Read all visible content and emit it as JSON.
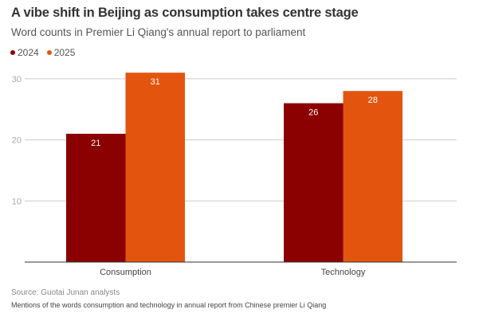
{
  "title": "A vibe shift in Beijing as consumption takes centre stage",
  "subtitle": "Word counts in Premier Li Qiang's annual report to parliament",
  "source": "Source: Guotai Junan analysts",
  "note": "Mentions of the words consumption and technology in annual report from Chinese premier Li Qiang",
  "chart_data": {
    "type": "bar",
    "title": "A vibe shift in Beijing as consumption takes centre stage",
    "xlabel": "",
    "ylabel": "",
    "categories": [
      "Consumption",
      "Technology"
    ],
    "series": [
      {
        "name": "2024",
        "values": [
          21,
          26
        ],
        "color": "#8b0000"
      },
      {
        "name": "2025",
        "values": [
          31,
          28
        ],
        "color": "#e3550f"
      }
    ],
    "ylim": [
      0,
      33
    ],
    "yticks": [
      10,
      20,
      30
    ],
    "grid": true,
    "legend": "top-left"
  }
}
